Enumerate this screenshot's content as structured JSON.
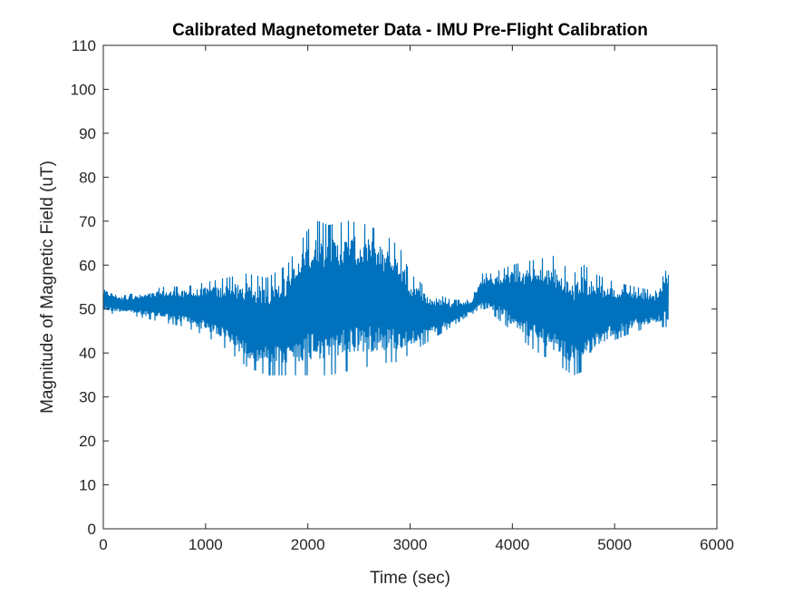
{
  "chart_data": {
    "type": "line",
    "title": "Calibrated Magnetometer Data - IMU Pre-Flight Calibration",
    "xlabel": "Time (sec)",
    "ylabel": "Magnitude of Magnetic Field (uT)",
    "xlim": [
      0,
      6000
    ],
    "ylim": [
      0,
      110
    ],
    "xticks": [
      "0",
      "1000",
      "2000",
      "3000",
      "4000",
      "5000",
      "6000"
    ],
    "yticks": [
      "0",
      "10",
      "20",
      "30",
      "40",
      "50",
      "60",
      "70",
      "80",
      "90",
      "100",
      "110"
    ],
    "grid": false,
    "legend": "none",
    "series": [
      {
        "color": "#0072BD",
        "line_style": "dense oscillating signal plotted as min/max envelope",
        "x": [
          0,
          200,
          400,
          600,
          800,
          1000,
          1200,
          1400,
          1600,
          1800,
          2000,
          2100,
          2200,
          2400,
          2600,
          2800,
          2900,
          3000,
          3200,
          3400,
          3600,
          3700,
          3800,
          4000,
          4200,
          4400,
          4600,
          4700,
          4800,
          5000,
          5200,
          5400,
          5530
        ],
        "upper": [
          55,
          53,
          54,
          55,
          55,
          56,
          57,
          58,
          57,
          60,
          68,
          70,
          69,
          70,
          69,
          66,
          64,
          58,
          54,
          52,
          52,
          58,
          58,
          60,
          61,
          62,
          58,
          60,
          58,
          56,
          55,
          54,
          60
        ],
        "lower": [
          49,
          49,
          48,
          47,
          46,
          44,
          41,
          37,
          35,
          35,
          35,
          35,
          35,
          36,
          37,
          38,
          38,
          40,
          43,
          46,
          49,
          49,
          49,
          45,
          41,
          38,
          35,
          36,
          39,
          43,
          45,
          46,
          46
        ]
      }
    ]
  }
}
